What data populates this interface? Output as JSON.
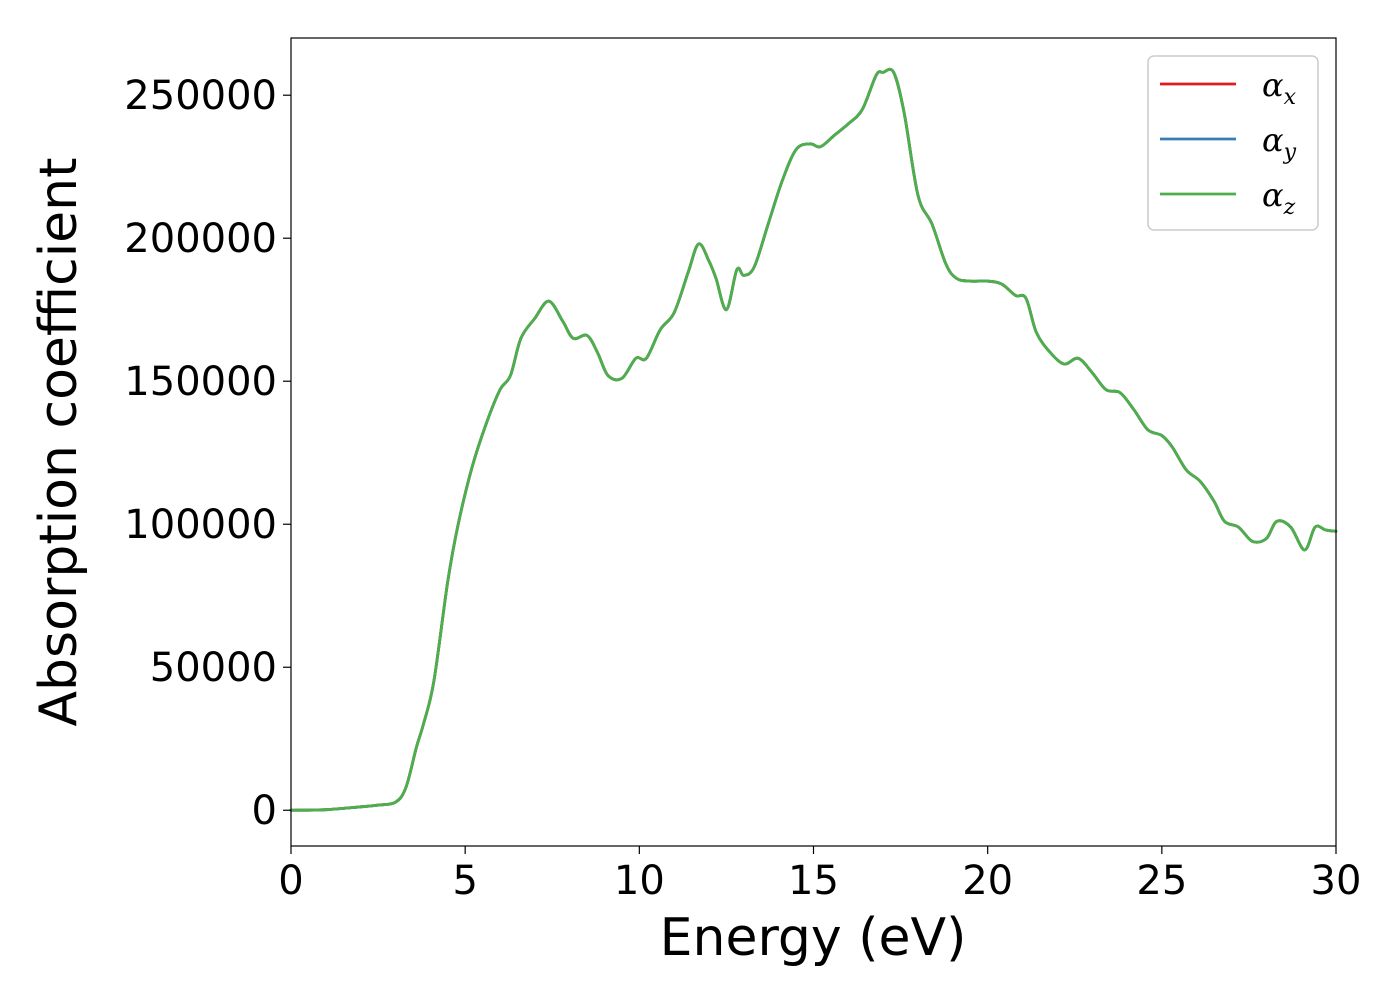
{
  "chart_data": {
    "type": "line",
    "xlabel": "Energy (eV)",
    "ylabel": "Absorption coefficient",
    "xlim": [
      0,
      30
    ],
    "ylim": [
      -12500,
      270000
    ],
    "xticks": [
      "0",
      "5",
      "10",
      "15",
      "20",
      "25",
      "30"
    ],
    "xtick_values": [
      0,
      5,
      10,
      15,
      20,
      25,
      30
    ],
    "yticks": [
      "0",
      "50000",
      "100000",
      "150000",
      "200000",
      "250000"
    ],
    "ytick_values": [
      0,
      50000,
      100000,
      150000,
      200000,
      250000
    ],
    "grid": false,
    "legend_position": "top-right",
    "series": [
      {
        "name": "αx",
        "symbol": "α",
        "subscript": "x",
        "color": "#e41a1c",
        "x": [
          0,
          1,
          2,
          2.5,
          3,
          3.3,
          3.6,
          3.8,
          4.1,
          4.5,
          4.8,
          5.2,
          5.6,
          6.0,
          6.3,
          6.6,
          7.0,
          7.4,
          7.8,
          8.1,
          8.5,
          8.8,
          9.1,
          9.5,
          9.9,
          10.2,
          10.6,
          11.0,
          11.4,
          11.7,
          12.0,
          12.2,
          12.5,
          12.8,
          13.0,
          13.3,
          13.7,
          14.1,
          14.5,
          14.9,
          15.2,
          15.6,
          16.0,
          16.4,
          16.8,
          17.0,
          17.3,
          17.6,
          18.0,
          18.4,
          18.8,
          19.1,
          19.5,
          20.0,
          20.4,
          20.8,
          21.1,
          21.4,
          21.8,
          22.2,
          22.6,
          23.0,
          23.4,
          23.8,
          24.2,
          24.6,
          25.0,
          25.3,
          25.7,
          26.1,
          26.5,
          26.8,
          27.2,
          27.6,
          28.0,
          28.3,
          28.7,
          29.1,
          29.4,
          29.7,
          30.0
        ],
        "y": [
          0,
          200,
          1200,
          1800,
          2800,
          8000,
          22000,
          30000,
          45000,
          80000,
          100000,
          120000,
          135000,
          147000,
          152000,
          165000,
          172000,
          178000,
          171000,
          165000,
          166000,
          160000,
          152000,
          151000,
          158000,
          158000,
          168000,
          174000,
          188000,
          198000,
          192000,
          186000,
          175000,
          189000,
          187000,
          190000,
          205000,
          220000,
          231000,
          233000,
          232000,
          236000,
          240000,
          245000,
          257000,
          258000,
          258000,
          244000,
          215000,
          205000,
          191000,
          186000,
          185000,
          185000,
          184000,
          180000,
          179000,
          167000,
          160000,
          156000,
          158000,
          153000,
          147000,
          146000,
          140000,
          133000,
          131000,
          127000,
          119000,
          115000,
          108000,
          101000,
          99000,
          94000,
          95000,
          101000,
          99000,
          91000,
          99000,
          98000,
          97500
        ]
      },
      {
        "name": "αy",
        "symbol": "α",
        "subscript": "y",
        "color": "#377eb8",
        "x": [
          0,
          1,
          2,
          2.5,
          3,
          3.3,
          3.6,
          3.8,
          4.1,
          4.5,
          4.8,
          5.2,
          5.6,
          6.0,
          6.3,
          6.6,
          7.0,
          7.4,
          7.8,
          8.1,
          8.5,
          8.8,
          9.1,
          9.5,
          9.9,
          10.2,
          10.6,
          11.0,
          11.4,
          11.7,
          12.0,
          12.2,
          12.5,
          12.8,
          13.0,
          13.3,
          13.7,
          14.1,
          14.5,
          14.9,
          15.2,
          15.6,
          16.0,
          16.4,
          16.8,
          17.0,
          17.3,
          17.6,
          18.0,
          18.4,
          18.8,
          19.1,
          19.5,
          20.0,
          20.4,
          20.8,
          21.1,
          21.4,
          21.8,
          22.2,
          22.6,
          23.0,
          23.4,
          23.8,
          24.2,
          24.6,
          25.0,
          25.3,
          25.7,
          26.1,
          26.5,
          26.8,
          27.2,
          27.6,
          28.0,
          28.3,
          28.7,
          29.1,
          29.4,
          29.7,
          30.0
        ],
        "y": [
          0,
          200,
          1200,
          1800,
          2800,
          8000,
          22000,
          30000,
          45000,
          80000,
          100000,
          120000,
          135000,
          147000,
          152000,
          165000,
          172000,
          178000,
          171000,
          165000,
          166000,
          160000,
          152000,
          151000,
          158000,
          158000,
          168000,
          174000,
          188000,
          198000,
          192000,
          186000,
          175000,
          189000,
          187000,
          190000,
          205000,
          220000,
          231000,
          233000,
          232000,
          236000,
          240000,
          245000,
          257000,
          258000,
          258000,
          244000,
          215000,
          205000,
          191000,
          186000,
          185000,
          185000,
          184000,
          180000,
          179000,
          167000,
          160000,
          156000,
          158000,
          153000,
          147000,
          146000,
          140000,
          133000,
          131000,
          127000,
          119000,
          115000,
          108000,
          101000,
          99000,
          94000,
          95000,
          101000,
          99000,
          91000,
          99000,
          98000,
          97500
        ]
      },
      {
        "name": "αz",
        "symbol": "α",
        "subscript": "z",
        "color": "#4daf4a",
        "x": [
          0,
          1,
          2,
          2.5,
          3,
          3.3,
          3.6,
          3.8,
          4.1,
          4.5,
          4.8,
          5.2,
          5.6,
          6.0,
          6.3,
          6.6,
          7.0,
          7.4,
          7.8,
          8.1,
          8.5,
          8.8,
          9.1,
          9.5,
          9.9,
          10.2,
          10.6,
          11.0,
          11.4,
          11.7,
          12.0,
          12.2,
          12.5,
          12.8,
          13.0,
          13.3,
          13.7,
          14.1,
          14.5,
          14.9,
          15.2,
          15.6,
          16.0,
          16.4,
          16.8,
          17.0,
          17.3,
          17.6,
          18.0,
          18.4,
          18.8,
          19.1,
          19.5,
          20.0,
          20.4,
          20.8,
          21.1,
          21.4,
          21.8,
          22.2,
          22.6,
          23.0,
          23.4,
          23.8,
          24.2,
          24.6,
          25.0,
          25.3,
          25.7,
          26.1,
          26.5,
          26.8,
          27.2,
          27.6,
          28.0,
          28.3,
          28.7,
          29.1,
          29.4,
          29.7,
          30.0
        ],
        "y": [
          0,
          200,
          1200,
          1800,
          2800,
          8000,
          22000,
          30000,
          45000,
          80000,
          100000,
          120000,
          135000,
          147000,
          152000,
          165000,
          172000,
          178000,
          171000,
          165000,
          166000,
          160000,
          152000,
          151000,
          158000,
          158000,
          168000,
          174000,
          188000,
          198000,
          192000,
          186000,
          175000,
          189000,
          187000,
          190000,
          205000,
          220000,
          231000,
          233000,
          232000,
          236000,
          240000,
          245000,
          257000,
          258000,
          258000,
          244000,
          215000,
          205000,
          191000,
          186000,
          185000,
          185000,
          184000,
          180000,
          179000,
          167000,
          160000,
          156000,
          158000,
          153000,
          147000,
          146000,
          140000,
          133000,
          131000,
          127000,
          119000,
          115000,
          108000,
          101000,
          99000,
          94000,
          95000,
          101000,
          99000,
          91000,
          99000,
          98000,
          97500
        ]
      }
    ]
  }
}
